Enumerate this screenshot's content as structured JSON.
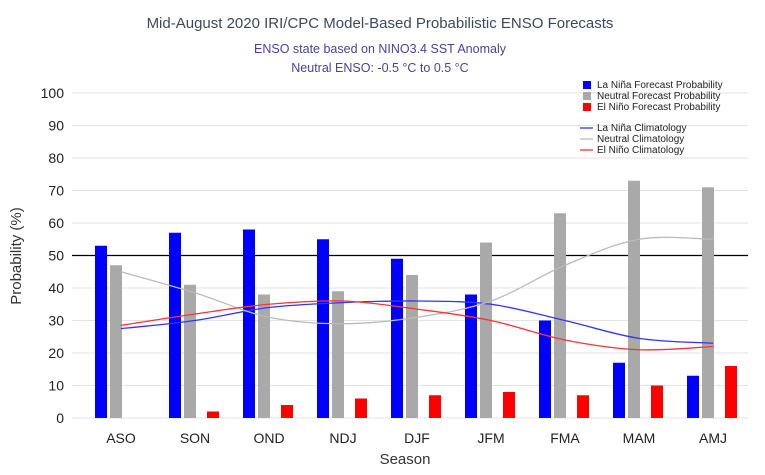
{
  "chart_data": {
    "type": "bar",
    "title": "Mid-August 2020 IRI/CPC Model-Based Probabilistic ENSO Forecasts",
    "subtitle_lines": [
      "ENSO state based on NINO3.4 SST Anomaly",
      "Neutral ENSO: -0.5 °C to 0.5 °C"
    ],
    "xlabel": "Season",
    "ylabel": "Probability (%)",
    "ylim": [
      0,
      100
    ],
    "yticks": [
      0,
      10,
      20,
      30,
      40,
      50,
      60,
      70,
      80,
      90,
      100
    ],
    "reference_line": 50,
    "grid": true,
    "legend_position": "top-right",
    "categories": [
      "ASO",
      "SON",
      "OND",
      "NDJ",
      "DJF",
      "JFM",
      "FMA",
      "MAM",
      "AMJ"
    ],
    "series": [
      {
        "name": "La Niña Forecast Probability",
        "type": "bar",
        "color": "#0000ff",
        "values": [
          53,
          57,
          58,
          55,
          49,
          38,
          30,
          17,
          13
        ]
      },
      {
        "name": "Neutral Forecast Probability",
        "type": "bar",
        "color": "#a9a9a9",
        "values": [
          47,
          41,
          38,
          39,
          44,
          54,
          63,
          73,
          71
        ]
      },
      {
        "name": "El Niño Forecast Probability",
        "type": "bar",
        "color": "#ff0000",
        "values": [
          0,
          2,
          4,
          6,
          7,
          8,
          7,
          10,
          16
        ]
      },
      {
        "name": "La Niña Climatology",
        "type": "line",
        "color": "#3333ff",
        "values": [
          27.5,
          30,
          34,
          35.5,
          36,
          35,
          30,
          24.5,
          23
        ]
      },
      {
        "name": "Neutral Climatology",
        "type": "line",
        "color": "#bbbbbb",
        "values": [
          45,
          38.5,
          31,
          29,
          31,
          36,
          47,
          55,
          55
        ]
      },
      {
        "name": "El Niño Climatology",
        "type": "line",
        "color": "#ff3333",
        "values": [
          28.5,
          32,
          35,
          36,
          33.5,
          30,
          24,
          21,
          22
        ]
      }
    ]
  }
}
